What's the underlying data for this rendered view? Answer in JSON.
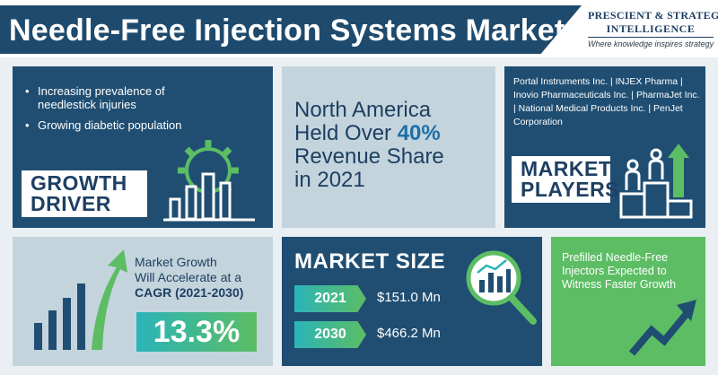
{
  "header": {
    "title": "Needle-Free Injection Systems Market",
    "brand_line1": "PRESCIENT & STRATEGIC",
    "brand_line2": "INTELLIGENCE",
    "brand_tagline": "Where knowledge inspires strategy"
  },
  "growth_driver": {
    "bullets": [
      "Increasing prevalence of needlestick injuries",
      "Growing diabetic population"
    ],
    "label_line1": "GROWTH",
    "label_line2": "DRIVER"
  },
  "north_america": {
    "line1": "North America",
    "line2_prefix": "Held Over ",
    "line2_pct": "40%",
    "line3": "Revenue Share",
    "line4": "in 2021"
  },
  "market_players": {
    "companies": "Portal Instruments Inc. | INJEX Pharma | Inovio Pharmaceuticals Inc. | PharmaJet Inc. | National Medical Products Inc. | PenJet Corporation",
    "label_line1": "MARKET",
    "label_line2": "PLAYERS"
  },
  "cagr": {
    "line1": "Market Growth",
    "line2": "Will Accelerate at a",
    "line3": "CAGR (2021-2030)",
    "value": "13.3%"
  },
  "market_size": {
    "title": "MARKET SIZE",
    "rows": [
      {
        "year": "2021",
        "value": "$151.0 Mn"
      },
      {
        "year": "2030",
        "value": "$466.2 Mn"
      }
    ]
  },
  "prefilled": {
    "text": "Prefilled Needle-Free Injectors Expected to Witness Faster Growth"
  },
  "colors": {
    "navy": "#1f4e72",
    "light_panel": "#c4d4dc",
    "green": "#5cbd64",
    "teal": "#2bb4b8"
  }
}
